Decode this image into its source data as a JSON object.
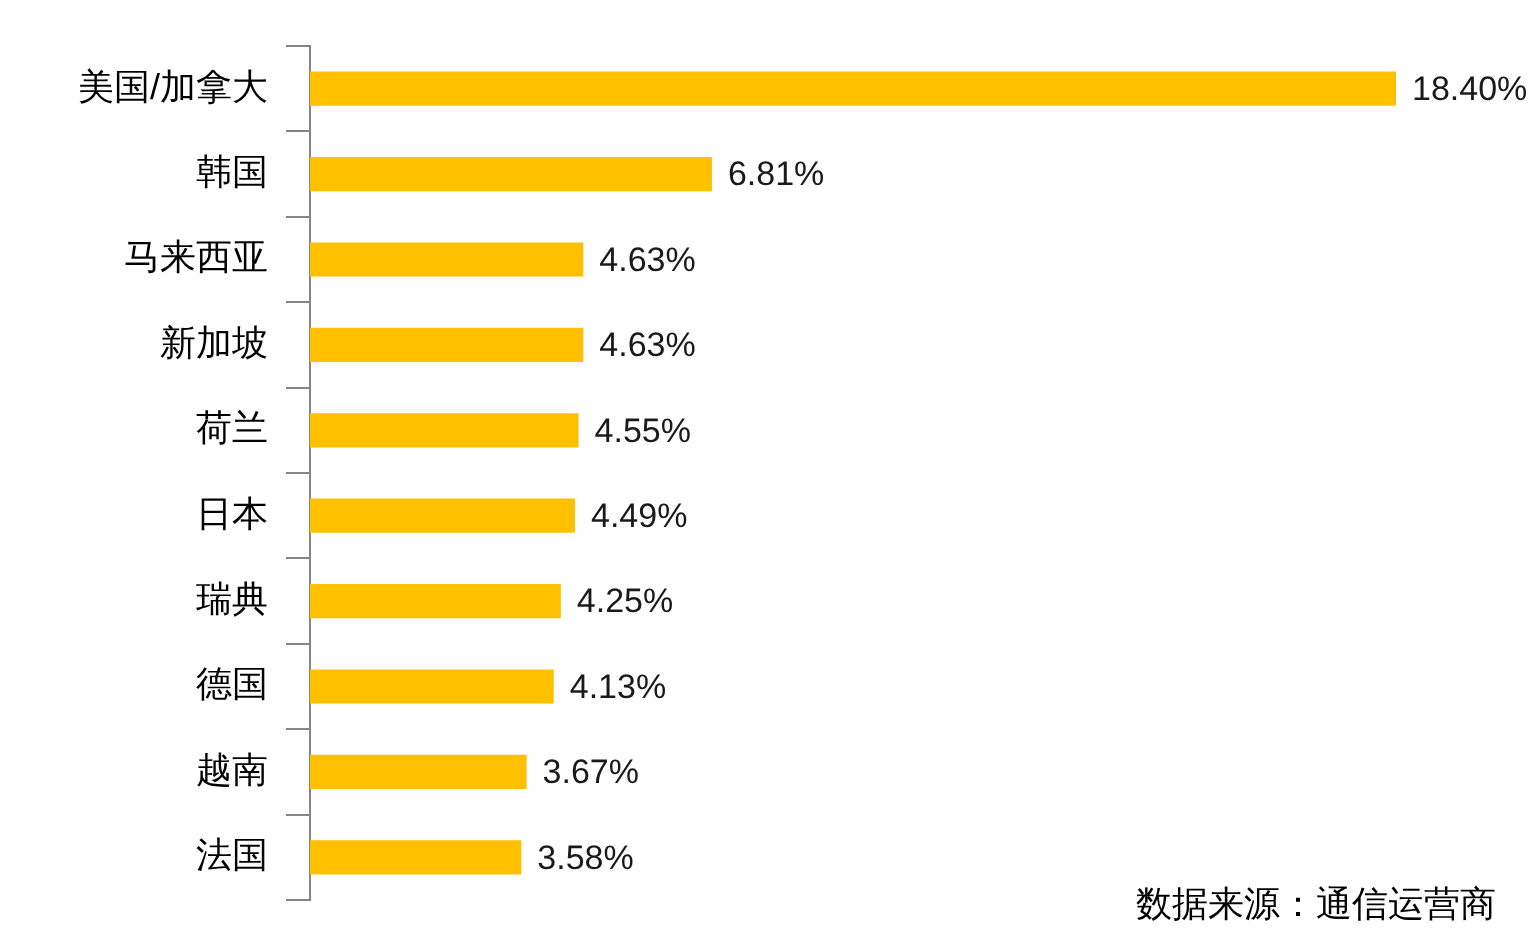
{
  "chart_data": {
    "type": "bar",
    "orientation": "horizontal",
    "categories": [
      "美国/加拿大",
      "韩国",
      "马来西亚",
      "新加坡",
      "荷兰",
      "日本",
      "瑞典",
      "德国",
      "越南",
      "法国"
    ],
    "values": [
      18.4,
      6.81,
      4.63,
      4.63,
      4.55,
      4.49,
      4.25,
      4.13,
      3.67,
      3.58
    ],
    "value_labels": [
      "18.40%",
      "6.81%",
      "4.63%",
      "4.63%",
      "4.55%",
      "4.49%",
      "4.25%",
      "4.13%",
      "3.67%",
      "3.58%"
    ],
    "color": "#ffc000",
    "grid": false,
    "legend": false,
    "tick_labels": "y",
    "annotations": [
      "数据来源：通信运营商"
    ]
  }
}
